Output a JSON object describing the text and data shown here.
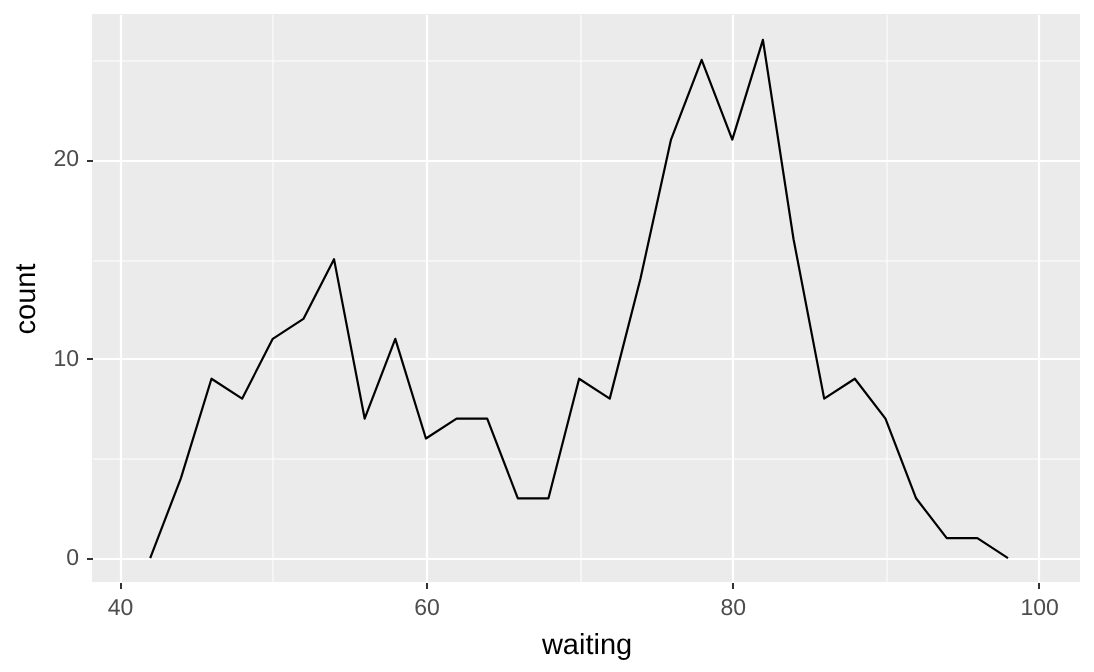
{
  "chart_data": {
    "type": "line",
    "xlabel": "waiting",
    "ylabel": "count",
    "x": [
      42,
      44,
      46,
      48,
      50,
      52,
      54,
      56,
      58,
      60,
      62,
      64,
      66,
      68,
      70,
      72,
      74,
      76,
      78,
      80,
      82,
      84,
      86,
      88,
      90,
      92,
      94,
      96,
      98
    ],
    "series": [
      {
        "color": "#000000",
        "values": [
          0,
          4,
          9,
          8,
          11,
          12,
          15,
          7,
          11,
          6,
          7,
          7,
          3,
          3,
          9,
          8,
          14,
          21,
          25,
          21,
          26,
          16,
          8,
          9,
          7,
          3,
          1,
          1,
          0
        ]
      }
    ],
    "xlim": [
      38.2,
      102.7
    ],
    "xticks": [
      40,
      {
        "value": 50,
        "label": null
      },
      60,
      {
        "value": 70,
        "label": null
      },
      80,
      {
        "value": 90,
        "label": null
      },
      100
    ],
    "ylim": [
      -1.2,
      27.3
    ],
    "yticks": [
      0,
      {
        "value": 5,
        "label": null
      },
      10,
      {
        "value": 15,
        "label": null
      },
      20,
      {
        "value": 25,
        "label": null
      }
    ],
    "grid": true,
    "marker": "none",
    "line_style": "solid"
  }
}
